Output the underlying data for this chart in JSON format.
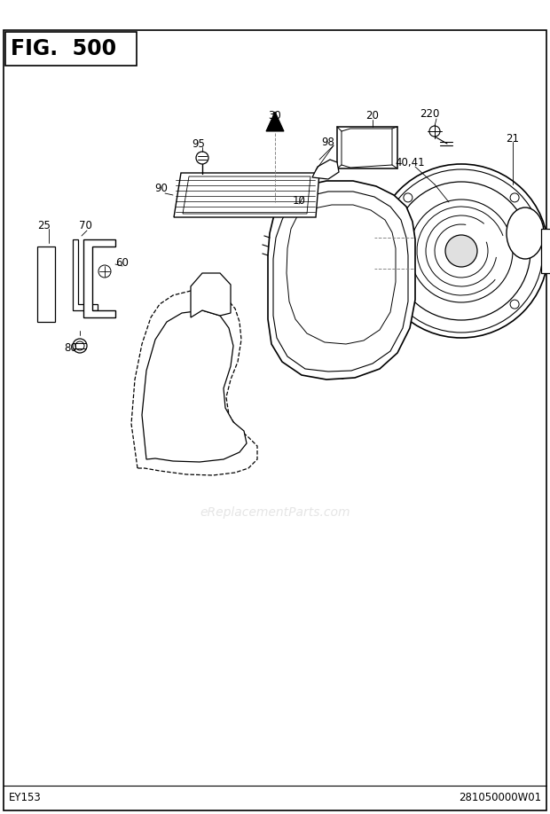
{
  "title": "FIG.  500",
  "bottom_left": "EY153",
  "bottom_right": "281050000W01",
  "watermark": "eReplacementParts.com",
  "bg_color": "#ffffff",
  "text_color": "#000000",
  "figsize": [
    6.2,
    9.18
  ],
  "dpi": 100
}
